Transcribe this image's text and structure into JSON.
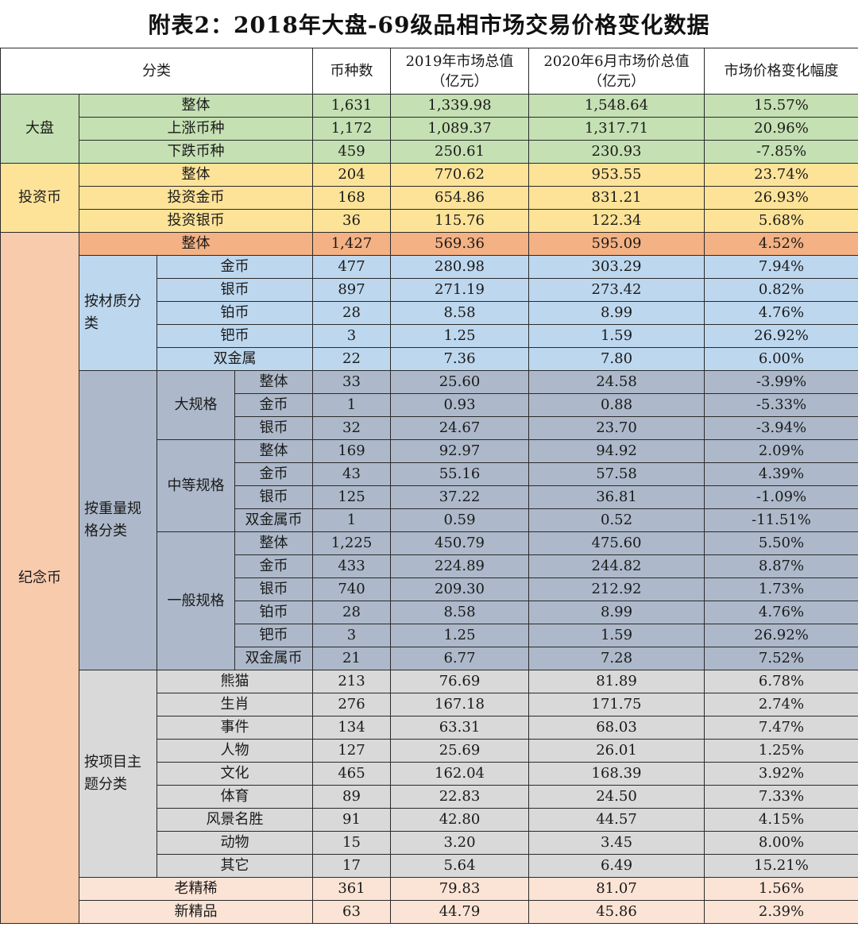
{
  "title": "附表2：2018年大盘-69级品相市场交易价格变化数据",
  "headers": {
    "category": "分类",
    "count": "币种数",
    "v2019_line1": "2019年市场总值",
    "v2019_line2": "（亿元）",
    "v2020_line1": "2020年6月市场价总值",
    "v2020_line2": "（亿元）",
    "change": "市场价格变化幅度"
  },
  "groups": {
    "dapan": "大盘",
    "invest": "投资币",
    "jinian": "纪念币",
    "material": "按材质分类",
    "weight": "按重量规格分类",
    "large": "大规格",
    "medium": "中等规格",
    "general": "一般规格",
    "theme": "按项目主题分类"
  },
  "rows": [
    {
      "label": "整体",
      "count": "1,631",
      "v2019": "1,339.98",
      "v2020": "1,548.64",
      "change": "15.57%"
    },
    {
      "label": "上涨币种",
      "count": "1,172",
      "v2019": "1,089.37",
      "v2020": "1,317.71",
      "change": "20.96%"
    },
    {
      "label": "下跌币种",
      "count": "459",
      "v2019": "250.61",
      "v2020": "230.93",
      "change": "-7.85%"
    },
    {
      "label": "整体",
      "count": "204",
      "v2019": "770.62",
      "v2020": "953.55",
      "change": "23.74%"
    },
    {
      "label": "投资金币",
      "count": "168",
      "v2019": "654.86",
      "v2020": "831.21",
      "change": "26.93%"
    },
    {
      "label": "投资银币",
      "count": "36",
      "v2019": "115.76",
      "v2020": "122.34",
      "change": "5.68%"
    },
    {
      "label": "整体",
      "count": "1,427",
      "v2019": "569.36",
      "v2020": "595.09",
      "change": "4.52%"
    },
    {
      "label": "金币",
      "count": "477",
      "v2019": "280.98",
      "v2020": "303.29",
      "change": "7.94%"
    },
    {
      "label": "银币",
      "count": "897",
      "v2019": "271.19",
      "v2020": "273.42",
      "change": "0.82%"
    },
    {
      "label": "铂币",
      "count": "28",
      "v2019": "8.58",
      "v2020": "8.99",
      "change": "4.76%"
    },
    {
      "label": "钯币",
      "count": "3",
      "v2019": "1.25",
      "v2020": "1.59",
      "change": "26.92%"
    },
    {
      "label": "双金属",
      "count": "22",
      "v2019": "7.36",
      "v2020": "7.80",
      "change": "6.00%"
    },
    {
      "label": "整体",
      "count": "33",
      "v2019": "25.60",
      "v2020": "24.58",
      "change": "-3.99%"
    },
    {
      "label": "金币",
      "count": "1",
      "v2019": "0.93",
      "v2020": "0.88",
      "change": "-5.33%"
    },
    {
      "label": "银币",
      "count": "32",
      "v2019": "24.67",
      "v2020": "23.70",
      "change": "-3.94%"
    },
    {
      "label": "整体",
      "count": "169",
      "v2019": "92.97",
      "v2020": "94.92",
      "change": "2.09%"
    },
    {
      "label": "金币",
      "count": "43",
      "v2019": "55.16",
      "v2020": "57.58",
      "change": "4.39%"
    },
    {
      "label": "银币",
      "count": "125",
      "v2019": "37.22",
      "v2020": "36.81",
      "change": "-1.09%"
    },
    {
      "label": "双金属币",
      "count": "1",
      "v2019": "0.59",
      "v2020": "0.52",
      "change": "-11.51%"
    },
    {
      "label": "整体",
      "count": "1,225",
      "v2019": "450.79",
      "v2020": "475.60",
      "change": "5.50%"
    },
    {
      "label": "金币",
      "count": "433",
      "v2019": "224.89",
      "v2020": "244.82",
      "change": "8.87%"
    },
    {
      "label": "银币",
      "count": "740",
      "v2019": "209.30",
      "v2020": "212.92",
      "change": "1.73%"
    },
    {
      "label": "铂币",
      "count": "28",
      "v2019": "8.58",
      "v2020": "8.99",
      "change": "4.76%"
    },
    {
      "label": "钯币",
      "count": "3",
      "v2019": "1.25",
      "v2020": "1.59",
      "change": "26.92%"
    },
    {
      "label": "双金属币",
      "count": "21",
      "v2019": "6.77",
      "v2020": "7.28",
      "change": "7.52%"
    },
    {
      "label": "熊猫",
      "count": "213",
      "v2019": "76.69",
      "v2020": "81.89",
      "change": "6.78%"
    },
    {
      "label": "生肖",
      "count": "276",
      "v2019": "167.18",
      "v2020": "171.75",
      "change": "2.74%"
    },
    {
      "label": "事件",
      "count": "134",
      "v2019": "63.31",
      "v2020": "68.03",
      "change": "7.47%"
    },
    {
      "label": "人物",
      "count": "127",
      "v2019": "25.69",
      "v2020": "26.01",
      "change": "1.25%"
    },
    {
      "label": "文化",
      "count": "465",
      "v2019": "162.04",
      "v2020": "168.39",
      "change": "3.92%"
    },
    {
      "label": "体育",
      "count": "89",
      "v2019": "22.83",
      "v2020": "24.50",
      "change": "7.33%"
    },
    {
      "label": "风景名胜",
      "count": "91",
      "v2019": "42.80",
      "v2020": "44.57",
      "change": "4.15%"
    },
    {
      "label": "动物",
      "count": "15",
      "v2019": "3.20",
      "v2020": "3.45",
      "change": "8.00%"
    },
    {
      "label": "其它",
      "count": "17",
      "v2019": "5.64",
      "v2020": "6.49",
      "change": "15.21%"
    },
    {
      "label": "老精稀",
      "count": "361",
      "v2019": "79.83",
      "v2020": "81.07",
      "change": "1.56%"
    },
    {
      "label": "新精品",
      "count": "63",
      "v2019": "44.79",
      "v2020": "45.86",
      "change": "2.39%"
    }
  ]
}
